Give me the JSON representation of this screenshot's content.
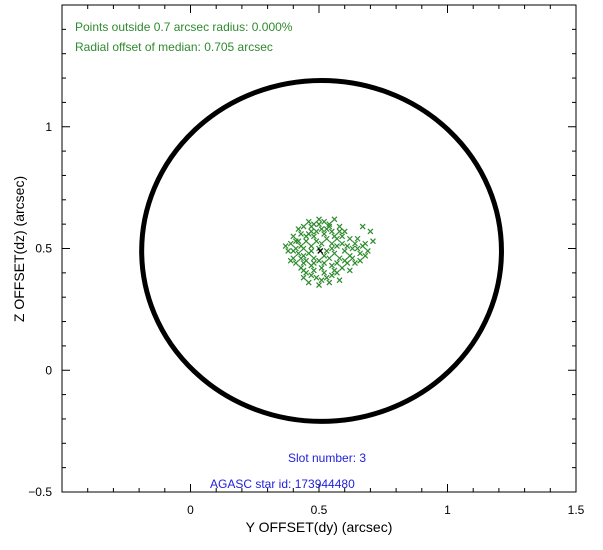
{
  "chart_data": {
    "type": "scatter",
    "title": "",
    "xlabel": "Y OFFSET(dy) (arcsec)",
    "ylabel": "Z OFFSET(dz) (arcsec)",
    "xlim": [
      -0.5,
      1.5
    ],
    "ylim": [
      -0.5,
      1.5
    ],
    "x_ticks": [
      0,
      0.5,
      1,
      1.5
    ],
    "x_tick_labels": [
      "0",
      "0.5",
      "1",
      "1.5"
    ],
    "y_ticks": [
      -0.5,
      0,
      0.5,
      1
    ],
    "y_tick_labels": [
      "−0.5",
      "0",
      "0.5",
      "1"
    ],
    "grid": false,
    "annotations": {
      "points_outside": "Points outside 0.7 arcsec radius: 0.000%",
      "radial_offset": "Radial offset of median: 0.705 arcsec",
      "slot_number": "Slot number: 3",
      "agasc_id": "AGASC star id: 173944480"
    },
    "circle": {
      "center": [
        0.51,
        0.49
      ],
      "radius": 0.7
    },
    "median_marker": [
      0.505,
      0.49
    ],
    "series": [
      {
        "marker": "x",
        "color": "#2e8b2e",
        "points": [
          [
            0.42,
            0.58
          ],
          [
            0.44,
            0.59
          ],
          [
            0.46,
            0.61
          ],
          [
            0.48,
            0.6
          ],
          [
            0.5,
            0.62
          ],
          [
            0.52,
            0.61
          ],
          [
            0.54,
            0.6
          ],
          [
            0.56,
            0.62
          ],
          [
            0.58,
            0.59
          ],
          [
            0.6,
            0.57
          ],
          [
            0.4,
            0.55
          ],
          [
            0.43,
            0.56
          ],
          [
            0.47,
            0.57
          ],
          [
            0.51,
            0.58
          ],
          [
            0.55,
            0.57
          ],
          [
            0.59,
            0.55
          ],
          [
            0.62,
            0.54
          ],
          [
            0.64,
            0.52
          ],
          [
            0.65,
            0.5
          ],
          [
            0.66,
            0.48
          ],
          [
            0.39,
            0.52
          ],
          [
            0.41,
            0.5
          ],
          [
            0.42,
            0.48
          ],
          [
            0.4,
            0.46
          ],
          [
            0.41,
            0.44
          ],
          [
            0.43,
            0.42
          ],
          [
            0.45,
            0.4
          ],
          [
            0.47,
            0.39
          ],
          [
            0.49,
            0.38
          ],
          [
            0.51,
            0.37
          ],
          [
            0.53,
            0.38
          ],
          [
            0.55,
            0.39
          ],
          [
            0.57,
            0.4
          ],
          [
            0.59,
            0.42
          ],
          [
            0.61,
            0.44
          ],
          [
            0.63,
            0.46
          ],
          [
            0.64,
            0.44
          ],
          [
            0.62,
            0.41
          ],
          [
            0.58,
            0.37
          ],
          [
            0.54,
            0.36
          ],
          [
            0.5,
            0.35
          ],
          [
            0.46,
            0.36
          ],
          [
            0.44,
            0.38
          ],
          [
            0.38,
            0.49
          ],
          [
            0.37,
            0.51
          ],
          [
            0.68,
            0.52
          ],
          [
            0.69,
            0.49
          ],
          [
            0.71,
            0.53
          ],
          [
            0.7,
            0.57
          ],
          [
            0.67,
            0.59
          ],
          [
            0.45,
            0.53
          ],
          [
            0.47,
            0.51
          ],
          [
            0.49,
            0.53
          ],
          [
            0.51,
            0.52
          ],
          [
            0.53,
            0.54
          ],
          [
            0.55,
            0.52
          ],
          [
            0.57,
            0.51
          ],
          [
            0.56,
            0.48
          ],
          [
            0.54,
            0.46
          ],
          [
            0.52,
            0.47
          ],
          [
            0.5,
            0.45
          ],
          [
            0.48,
            0.46
          ],
          [
            0.46,
            0.48
          ],
          [
            0.44,
            0.47
          ],
          [
            0.43,
            0.51
          ],
          [
            0.45,
            0.55
          ],
          [
            0.48,
            0.55
          ],
          [
            0.52,
            0.56
          ],
          [
            0.56,
            0.55
          ],
          [
            0.59,
            0.52
          ],
          [
            0.6,
            0.49
          ],
          [
            0.58,
            0.46
          ],
          [
            0.55,
            0.43
          ],
          [
            0.51,
            0.42
          ],
          [
            0.47,
            0.43
          ],
          [
            0.44,
            0.44
          ],
          [
            0.42,
            0.53
          ],
          [
            0.44,
            0.5
          ],
          [
            0.47,
            0.49
          ],
          [
            0.5,
            0.5
          ],
          [
            0.53,
            0.49
          ],
          [
            0.55,
            0.5
          ],
          [
            0.57,
            0.54
          ],
          [
            0.53,
            0.58
          ],
          [
            0.49,
            0.57
          ],
          [
            0.46,
            0.56
          ],
          [
            0.61,
            0.51
          ],
          [
            0.62,
            0.47
          ],
          [
            0.6,
            0.45
          ],
          [
            0.57,
            0.44
          ],
          [
            0.52,
            0.44
          ],
          [
            0.48,
            0.44
          ],
          [
            0.45,
            0.45
          ],
          [
            0.43,
            0.46
          ],
          [
            0.41,
            0.53
          ],
          [
            0.4,
            0.49
          ],
          [
            0.5,
            0.6
          ],
          [
            0.54,
            0.59
          ],
          [
            0.47,
            0.59
          ],
          [
            0.58,
            0.57
          ],
          [
            0.63,
            0.5
          ],
          [
            0.65,
            0.54
          ],
          [
            0.66,
            0.45
          ],
          [
            0.48,
            0.41
          ],
          [
            0.52,
            0.4
          ],
          [
            0.56,
            0.41
          ],
          [
            0.44,
            0.41
          ],
          [
            0.39,
            0.45
          ],
          [
            0.67,
            0.51
          ],
          [
            0.68,
            0.47
          ]
        ]
      }
    ]
  }
}
